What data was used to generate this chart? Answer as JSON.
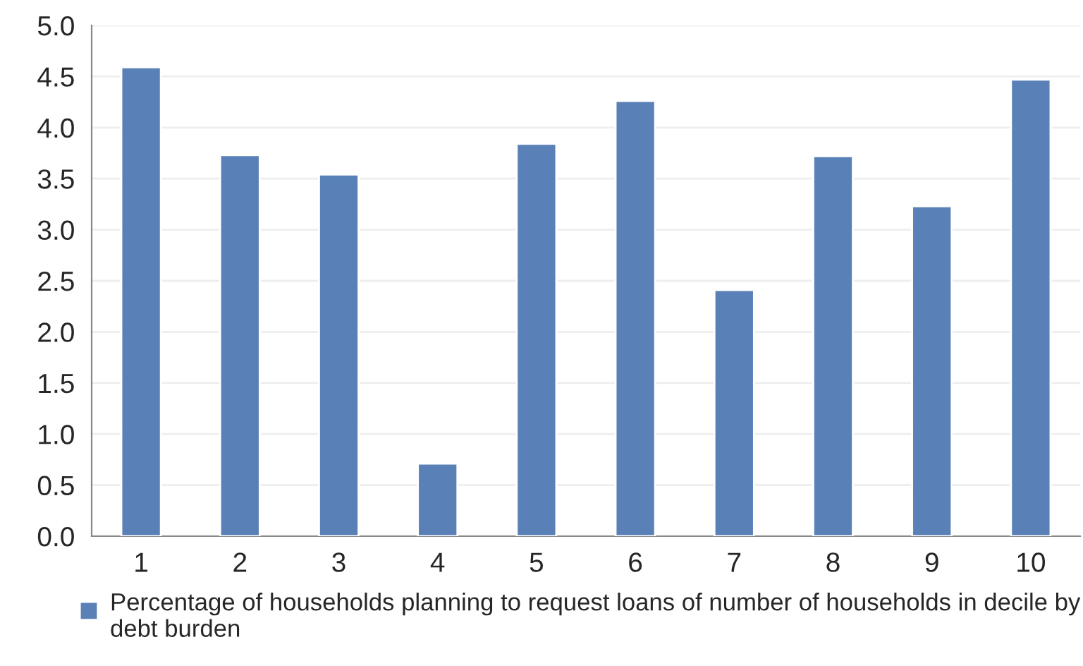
{
  "chart_data": {
    "type": "bar",
    "categories": [
      "1",
      "2",
      "3",
      "4",
      "5",
      "6",
      "7",
      "8",
      "9",
      "10"
    ],
    "series": [
      {
        "name": "Percentage of households planning to request loans of number of households in decile by debt burden",
        "color": "#5a80b8",
        "values": [
          4.59,
          3.73,
          3.54,
          0.71,
          3.84,
          4.26,
          2.41,
          3.72,
          3.23,
          4.47
        ]
      }
    ],
    "ylim": [
      0,
      5
    ],
    "yticks": [
      {
        "value": 0,
        "label": "0.0"
      },
      {
        "value": 0.5,
        "label": "0.5"
      },
      {
        "value": 1,
        "label": "1.0"
      },
      {
        "value": 1.5,
        "label": "1.5"
      },
      {
        "value": 2,
        "label": "2.0"
      },
      {
        "value": 2.5,
        "label": "2.5"
      },
      {
        "value": 3,
        "label": "3.0"
      },
      {
        "value": 3.5,
        "label": "3.5"
      },
      {
        "value": 4,
        "label": "4.0"
      },
      {
        "value": 4.5,
        "label": "4.5"
      },
      {
        "value": 5,
        "label": "5.0"
      }
    ],
    "grid": "y",
    "legend": "bottom"
  }
}
